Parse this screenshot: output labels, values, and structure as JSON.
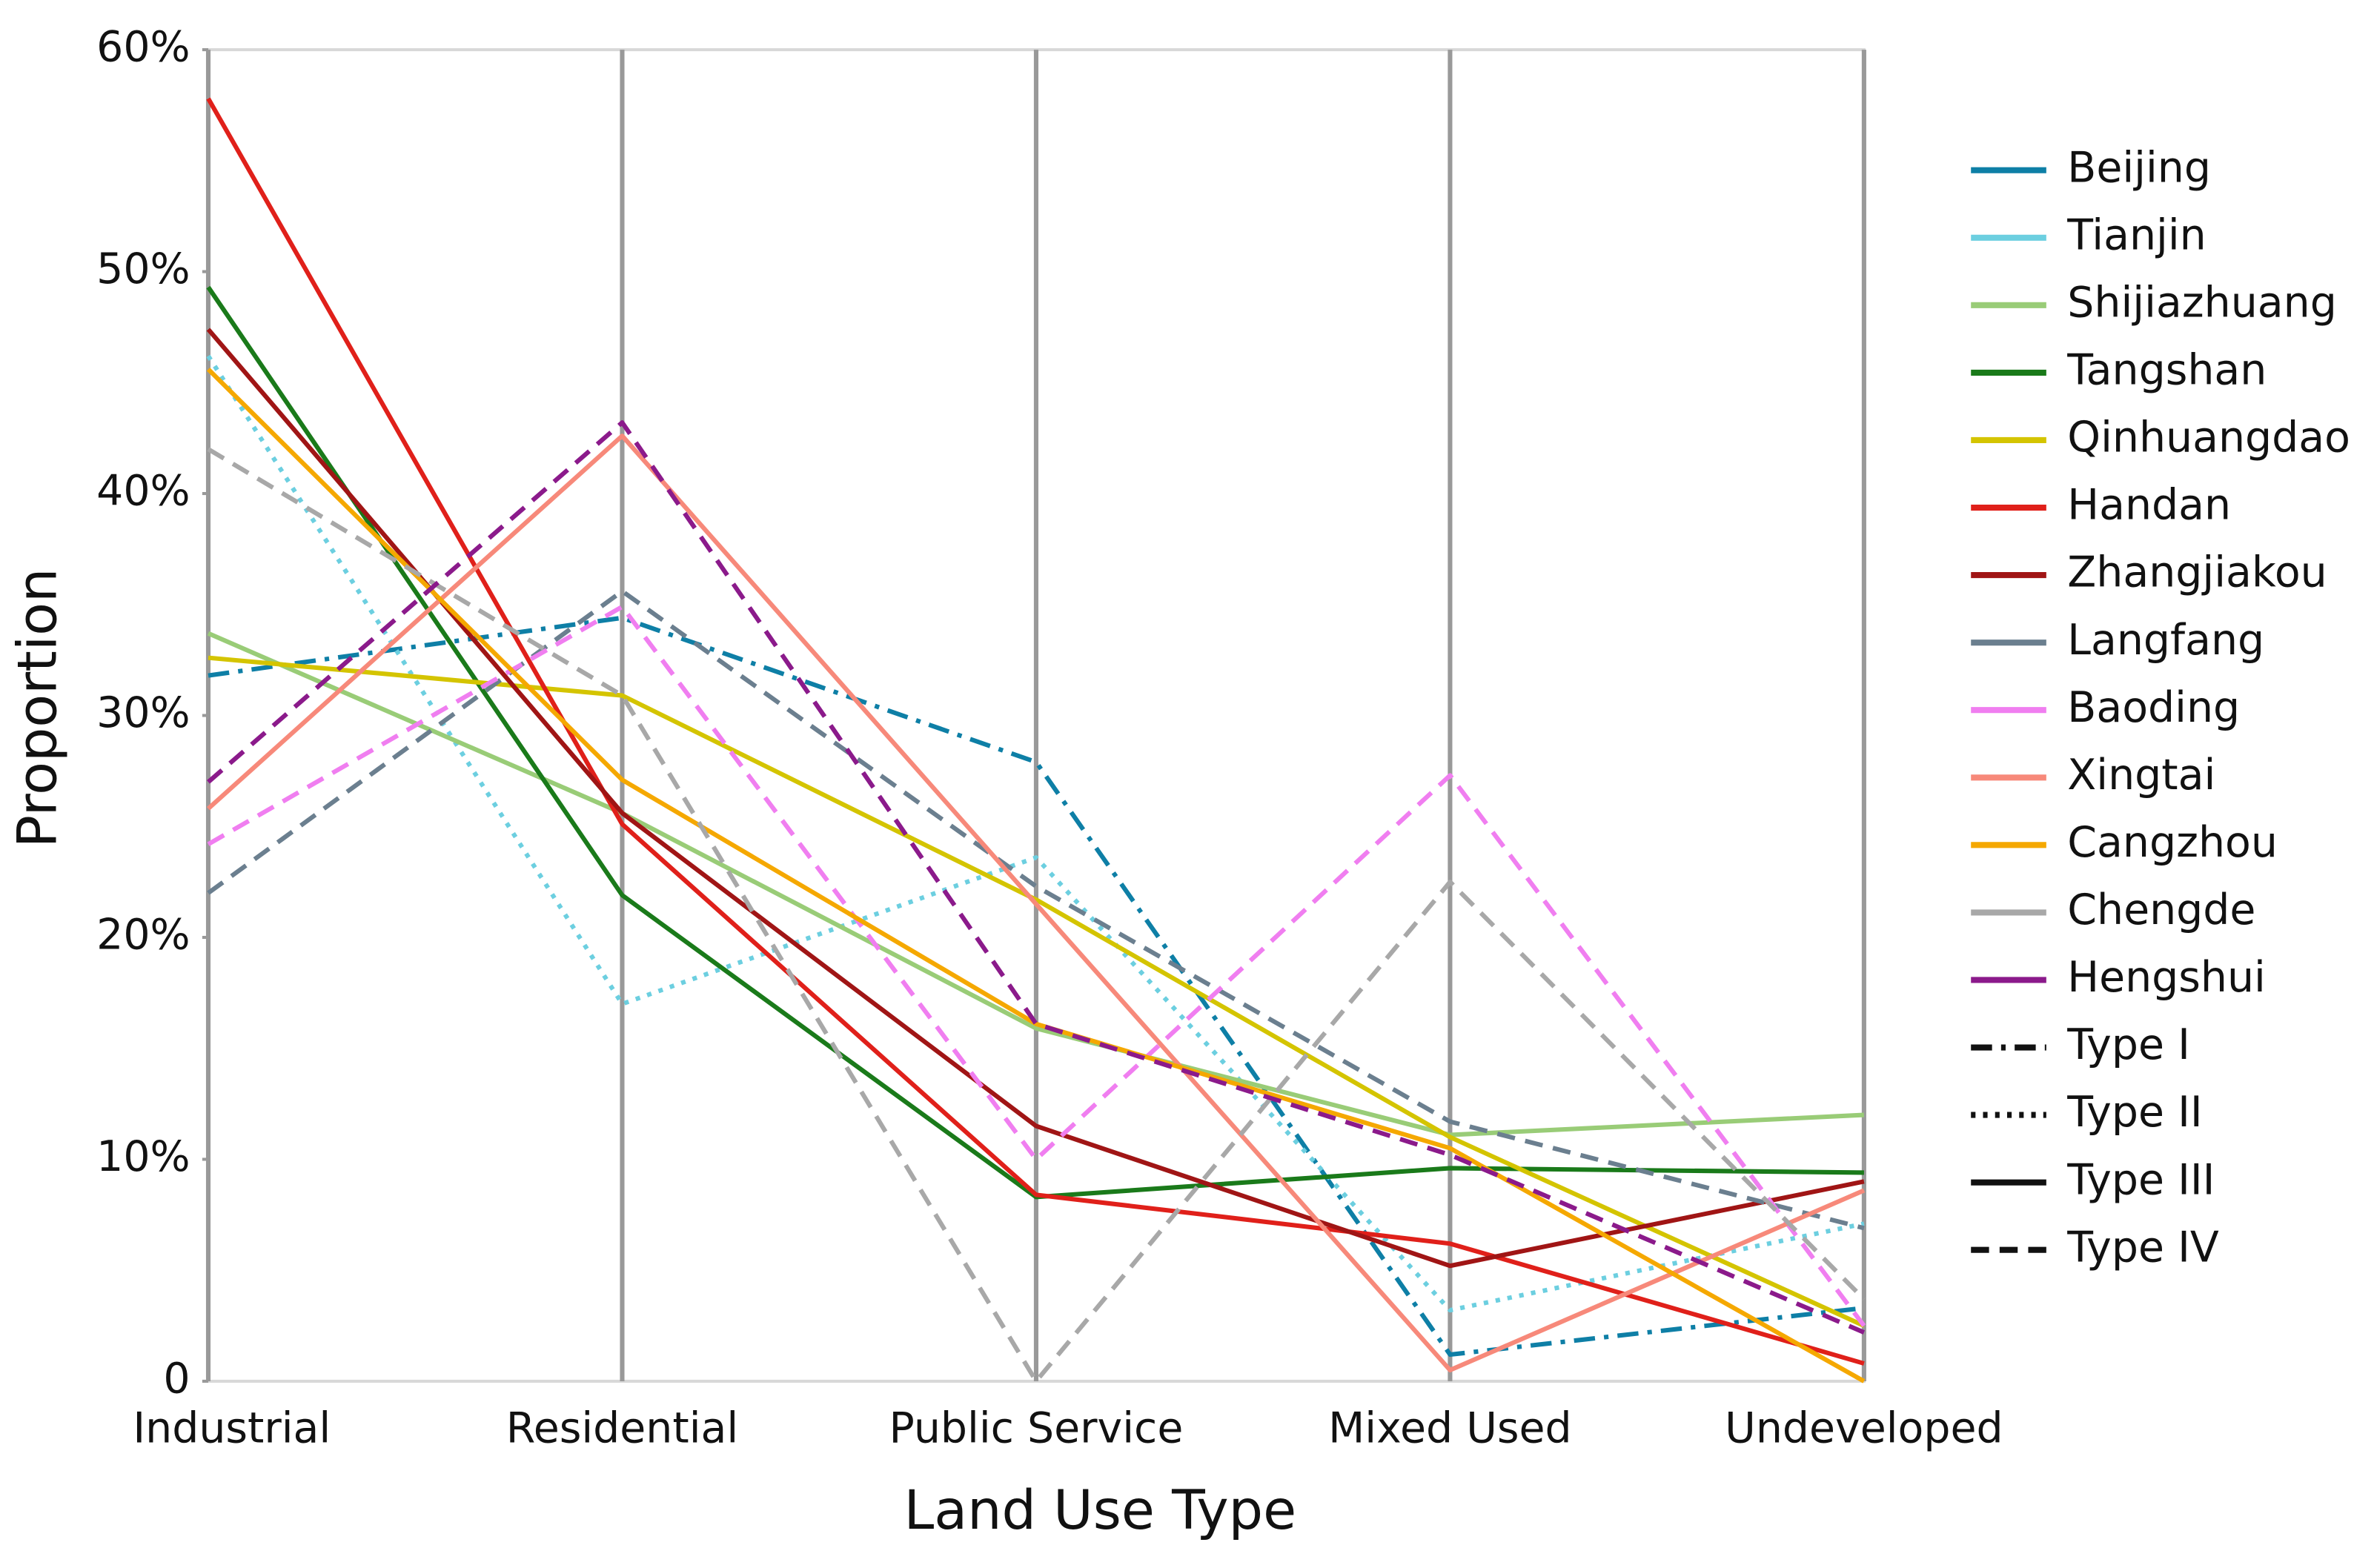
{
  "chart_data": {
    "type": "line",
    "x_label": "Land Use Type",
    "y_label": "Proportion",
    "categories": [
      "Industrial",
      "Residential",
      "Public Service",
      "Mixed Used",
      "Undeveloped"
    ],
    "ylim": [
      0,
      60
    ],
    "yticks": [
      0,
      {
        "value": 10,
        "label": "10%"
      },
      {
        "value": 20,
        "label": "20%"
      },
      {
        "value": 30,
        "label": "30%"
      },
      {
        "value": 40,
        "label": "40%"
      },
      {
        "value": 50,
        "label": "50%"
      },
      {
        "value": 60,
        "label": "60%"
      }
    ],
    "category_lines": true,
    "legend": "right",
    "series": [
      {
        "name": "Beijing",
        "color": "#0e7fa6",
        "dash": "dash-dot",
        "values": [
          31.8,
          34.4,
          27.9,
          1.2,
          3.3
        ]
      },
      {
        "name": "Tianjin",
        "color": "#6ccfe0",
        "dash": "dotted",
        "values": [
          46.2,
          17.0,
          23.6,
          3.2,
          7.1
        ]
      },
      {
        "name": " Shijiazhuang",
        "color": "#99cc77",
        "dash": "solid",
        "values": [
          33.7,
          25.6,
          15.9,
          11.1,
          12.0
        ]
      },
      {
        "name": "Tangshan",
        "color": "#1a7a1a",
        "dash": "solid",
        "values": [
          49.3,
          21.9,
          8.3,
          9.6,
          9.4
        ]
      },
      {
        "name": "Qinhuangdao",
        "color": "#d4c400",
        "dash": "solid",
        "values": [
          32.6,
          30.9,
          21.7,
          11.0,
          2.5
        ]
      },
      {
        "name": "Handan",
        "color": "#e0201a",
        "dash": "solid",
        "values": [
          57.8,
          25.1,
          8.4,
          6.2,
          0.8
        ]
      },
      {
        "name": "Zhangjiakou",
        "color": "#a01515",
        "dash": "solid",
        "values": [
          47.4,
          25.6,
          11.5,
          5.2,
          9.0
        ]
      },
      {
        "name": "Langfang",
        "color": "#6b7f8f",
        "dash": "dashed",
        "values": [
          22.0,
          35.6,
          22.3,
          11.7,
          6.9
        ]
      },
      {
        "name": "Baoding",
        "color": "#f07ef0",
        "dash": "dashed",
        "values": [
          24.2,
          34.9,
          10.0,
          27.3,
          2.5
        ]
      },
      {
        "name": "Xingtai",
        "color": "#f7897a",
        "dash": "solid",
        "values": [
          25.8,
          42.6,
          21.5,
          0.5,
          8.6
        ]
      },
      {
        "name": "Cangzhou",
        "color": "#f5a800",
        "dash": "solid",
        "values": [
          45.6,
          27.1,
          16.1,
          10.5,
          0
        ]
      },
      {
        "name": "Chengde",
        "color": "#a8a8a8",
        "dash": "dashed",
        "values": [
          42.0,
          30.9,
          0,
          22.5,
          3.7
        ]
      },
      {
        "name": "Hengshui",
        "color": "#8b1a8b",
        "dash": "dashed",
        "values": [
          27.0,
          43.2,
          16.1,
          10.2,
          2.2
        ]
      }
    ],
    "line_types": [
      {
        "name": "Type I",
        "dash": "dash-dot",
        "color": "#111111"
      },
      {
        "name": "Type II",
        "dash": "dotted",
        "color": "#111111"
      },
      {
        "name": "Type III",
        "dash": "solid",
        "color": "#111111"
      },
      {
        "name": "Type IV",
        "dash": "dashed",
        "color": "#111111"
      }
    ]
  }
}
